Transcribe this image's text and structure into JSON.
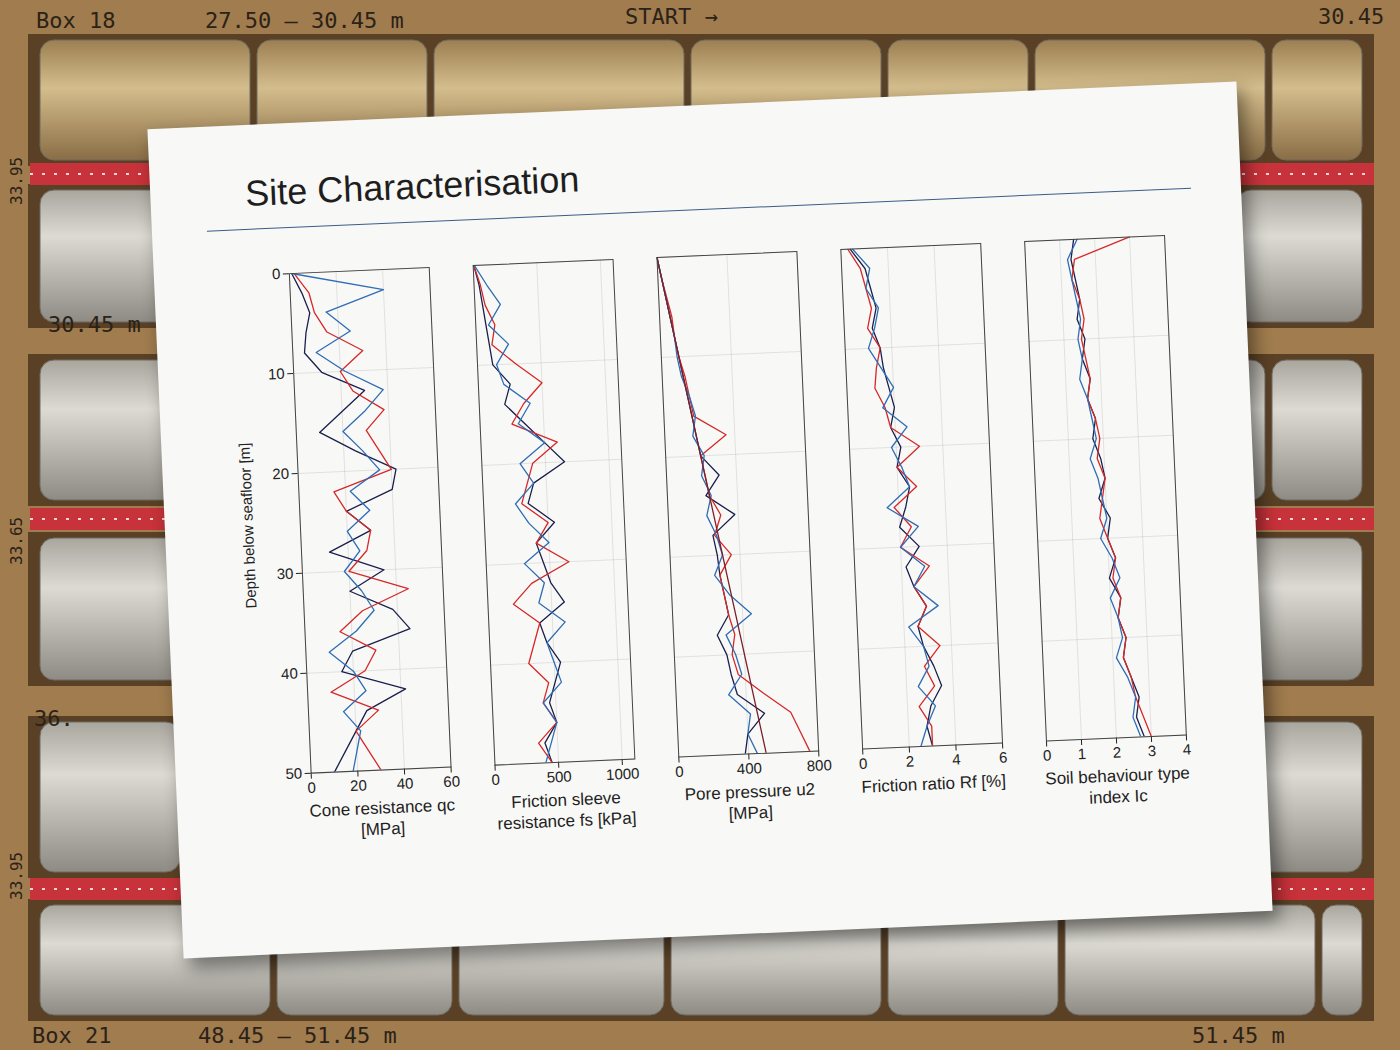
{
  "chart_data": {
    "type": "line",
    "title": "Site Characterisation",
    "ylabel": "Depth below seafloor [m]",
    "y": [
      0,
      2,
      4,
      6,
      8,
      10,
      12,
      14,
      16,
      18,
      20,
      22,
      24,
      26,
      28,
      30,
      32,
      34,
      36,
      38,
      40,
      42,
      44,
      46,
      48,
      50
    ],
    "ylim": [
      0,
      50
    ],
    "yticks": [
      0,
      10,
      20,
      30,
      40,
      50
    ],
    "grid": true,
    "panels": [
      {
        "xlabel": "Cone resistance qc [MPa]",
        "xlim": [
          0,
          60
        ],
        "xticks": [
          0,
          20,
          40,
          60
        ],
        "series": [
          {
            "color": "#1a1f4d",
            "values": [
              1,
              5,
              8,
              6,
              5,
              12,
              30,
              20,
              10,
              25,
              42,
              40,
              20,
              30,
              12,
              35,
              20,
              38,
              45,
              20,
              15,
              42,
              25,
              20,
              15,
              10
            ]
          },
          {
            "color": "#d62828",
            "values": [
              2,
              8,
              10,
              15,
              30,
              20,
              25,
              38,
              30,
              35,
              40,
              15,
              20,
              30,
              28,
              20,
              45,
              25,
              15,
              30,
              25,
              10,
              30,
              20,
              25,
              30
            ]
          },
          {
            "color": "#2f6db5",
            "values": [
              1,
              40,
              15,
              25,
              10,
              22,
              38,
              30,
              20,
              28,
              35,
              22,
              30,
              20,
              25,
              18,
              25,
              30,
              22,
              10,
              20,
              25,
              15,
              22,
              20,
              18
            ]
          }
        ]
      },
      {
        "xlabel": "Friction sleeve resistance fs [kPa]",
        "xlim": [
          0,
          1100
        ],
        "xticks": [
          0,
          500,
          1000
        ],
        "series": [
          {
            "color": "#1a1f4d",
            "values": [
              5,
              40,
              60,
              80,
              100,
              120,
              250,
              200,
              350,
              500,
              650,
              400,
              350,
              550,
              400,
              450,
              500,
              600,
              400,
              450,
              550,
              500,
              450,
              500,
              400,
              450
            ]
          },
          {
            "color": "#d62828",
            "values": [
              5,
              50,
              80,
              150,
              120,
              300,
              500,
              350,
              250,
              600,
              400,
              350,
              300,
              500,
              400,
              650,
              350,
              200,
              400,
              350,
              300,
              450,
              400,
              500,
              350,
              450
            ]
          },
          {
            "color": "#2f6db5",
            "values": [
              10,
              100,
              200,
              100,
              250,
              150,
              200,
              400,
              300,
              500,
              300,
              400,
              250,
              350,
              500,
              300,
              450,
              400,
              600,
              450,
              500,
              550,
              400,
              500,
              450,
              400
            ]
          }
        ]
      },
      {
        "xlabel": "Pore pressure u2 [MPa]",
        "xlim": [
          0,
          800
        ],
        "xticks": [
          0,
          400,
          800
        ],
        "series": [
          {
            "color": "#1a1f4d",
            "values": [
              0,
              20,
              40,
              60,
              80,
              100,
              120,
              140,
              160,
              180,
              200,
              300,
              220,
              380,
              250,
              270,
              280,
              300,
              320,
              250,
              300,
              320,
              350,
              500,
              400,
              380
            ]
          },
          {
            "color": "#d62828",
            "values": [
              0,
              20,
              45,
              70,
              80,
              100,
              130,
              150,
              170,
              350,
              200,
              220,
              240,
              300,
              260,
              350,
              280,
              300,
              320,
              350,
              330,
              360,
              500,
              650,
              700,
              750
            ]
          },
          {
            "color": "#2f6db5",
            "values": [
              0,
              20,
              40,
              60,
              80,
              90,
              110,
              150,
              180,
              160,
              220,
              200,
              250,
              220,
              270,
              300,
              250,
              330,
              450,
              300,
              350,
              380,
              300,
              420,
              400,
              450
            ]
          },
          {
            "color": "#7a1f2b",
            "values": [
              0,
              20,
              40,
              60,
              80,
              100,
              120,
              140,
              160,
              180,
              200,
              220,
              240,
              260,
              280,
              300,
              320,
              340,
              360,
              380,
              400,
              420,
              440,
              460,
              480,
              500
            ]
          }
        ]
      },
      {
        "xlabel": "Friction ratio Rf [%]",
        "xlim": [
          0,
          6
        ],
        "xticks": [
          0,
          2,
          4,
          6
        ],
        "series": [
          {
            "color": "#1a1f4d",
            "values": [
              0.4,
              1.0,
              1.2,
              1.4,
              1.2,
              1.5,
              1.6,
              1.8,
              2.0,
              1.8,
              2.2,
              2.0,
              2.5,
              2.3,
              2.0,
              2.8,
              2.2,
              2.5,
              3.0,
              2.6,
              2.8,
              3.2,
              3.5,
              3.0,
              2.8,
              3.0
            ]
          },
          {
            "color": "#d62828",
            "values": [
              0.3,
              0.8,
              1.0,
              1.2,
              1.0,
              1.5,
              1.3,
              1.2,
              1.6,
              1.8,
              3.0,
              2.0,
              2.8,
              1.8,
              2.5,
              2.0,
              3.2,
              2.5,
              3.0,
              2.6,
              3.5,
              2.8,
              3.2,
              2.5,
              3.0,
              3.0
            ]
          },
          {
            "color": "#2f6db5",
            "values": [
              0.5,
              1.2,
              1.0,
              1.5,
              1.3,
              1.0,
              1.5,
              2.0,
              1.5,
              2.5,
              1.8,
              2.2,
              2.5,
              1.5,
              2.8,
              2.0,
              3.0,
              2.5,
              3.5,
              2.2,
              2.8,
              3.0,
              2.5,
              3.2,
              2.8,
              2.5
            ]
          }
        ]
      },
      {
        "xlabel": "Soil behaviour type index Ic",
        "xlim": [
          0,
          4
        ],
        "xticks": [
          0,
          1,
          2,
          3,
          4
        ],
        "series": [
          {
            "color": "#1a1f4d",
            "values": [
              1.4,
              1.3,
              1.4,
              1.5,
              1.4,
              1.6,
              1.5,
              1.7,
              1.6,
              1.8,
              1.7,
              1.9,
              2.0,
              1.8,
              2.1,
              2.0,
              2.2,
              2.0,
              2.3,
              2.2,
              2.4,
              2.3,
              2.5,
              2.7,
              2.6,
              2.8
            ]
          },
          {
            "color": "#d62828",
            "values": [
              3.0,
              1.4,
              1.3,
              1.5,
              1.6,
              1.5,
              1.6,
              1.7,
              1.6,
              1.8,
              1.9,
              1.8,
              2.0,
              1.9,
              1.8,
              2.0,
              2.2,
              2.1,
              2.3,
              2.2,
              2.4,
              2.3,
              2.5,
              2.6,
              2.8,
              3.0
            ]
          },
          {
            "color": "#2f6db5",
            "values": [
              1.5,
              1.2,
              1.3,
              1.4,
              1.5,
              1.4,
              1.5,
              1.4,
              1.6,
              1.7,
              1.8,
              1.6,
              1.8,
              1.9,
              2.0,
              1.8,
              2.1,
              2.3,
              2.0,
              2.2,
              2.3,
              2.1,
              2.4,
              2.6,
              2.5,
              2.7
            ]
          }
        ]
      }
    ]
  },
  "background": {
    "labels": [
      "Box 18",
      "27.50 – 30.45 m",
      "START →",
      "30.45",
      "30.45 m",
      "33.95",
      "33.65",
      "36.",
      "33.95",
      "Box 21",
      "48.45 – 51.45 m",
      "51.45 m"
    ]
  }
}
